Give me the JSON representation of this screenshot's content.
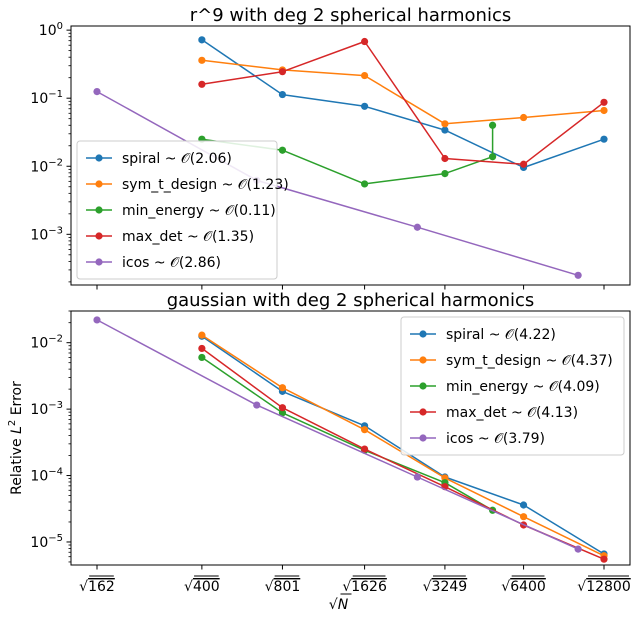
{
  "chart_data": [
    {
      "type": "line",
      "title": "r^9 with deg 2 spherical harmonics",
      "xlabel": "",
      "ylabel": "",
      "yscale": "log",
      "ylim": [
        0.00018,
        1.15
      ],
      "yticks": [
        {
          "value": 1,
          "base": "10",
          "exp": "0"
        },
        {
          "value": 0.1,
          "base": "10",
          "exp": "−1"
        },
        {
          "value": 0.01,
          "base": "10",
          "exp": "−2"
        },
        {
          "value": 0.001,
          "base": "10",
          "exp": "−3"
        }
      ],
      "grid": false,
      "legend_position": "lower-left",
      "series": [
        {
          "name": "spiral ~ 𝒪(2.06)",
          "color": "#1f77b4",
          "points": [
            [
              400,
              0.72
            ],
            [
              801,
              0.113
            ],
            [
              1626,
              0.076
            ],
            [
              3249,
              0.034
            ],
            [
              6400,
              0.0096
            ],
            [
              12800,
              0.025
            ]
          ]
        },
        {
          "name": "sym_t_design ~ 𝒪(1.23)",
          "color": "#ff7f0e",
          "points": [
            [
              400,
              0.36
            ],
            [
              801,
              0.26
            ],
            [
              1626,
              0.215
            ],
            [
              3249,
              0.042
            ],
            [
              6400,
              0.052
            ],
            [
              12800,
              0.066
            ]
          ]
        },
        {
          "name": "min_energy ~ 𝒪(0.11)",
          "color": "#2ca02c",
          "points": [
            [
              400,
              0.025
            ],
            [
              801,
              0.0172
            ],
            [
              1626,
              0.0055
            ],
            [
              3249,
              0.0078
            ],
            [
              4900,
              0.0138
            ],
            [
              4900,
              0.04
            ]
          ]
        },
        {
          "name": "max_det ~ 𝒪(1.35)",
          "color": "#d62728",
          "points": [
            [
              400,
              0.16
            ],
            [
              801,
              0.245
            ],
            [
              1626,
              0.68
            ],
            [
              3249,
              0.013
            ],
            [
              6400,
              0.0107
            ],
            [
              12800,
              0.087
            ]
          ]
        },
        {
          "name": "icos ~ 𝒪(2.86)",
          "color": "#9467bd",
          "points": [
            [
              162,
              0.125
            ],
            [
              642,
              0.0062
            ],
            [
              2562,
              0.00127
            ],
            [
              10242,
              0.00025
            ]
          ]
        }
      ]
    },
    {
      "type": "line",
      "title": "gaussian with deg 2 spherical harmonics",
      "xlabel": "√N",
      "ylabel": "Relative L² Error",
      "yscale": "log",
      "ylim": [
        4.5e-06,
        0.03
      ],
      "yticks": [
        {
          "value": 0.01,
          "base": "10",
          "exp": "−2"
        },
        {
          "value": 0.001,
          "base": "10",
          "exp": "−3"
        },
        {
          "value": 0.0001,
          "base": "10",
          "exp": "−4"
        },
        {
          "value": 1e-05,
          "base": "10",
          "exp": "−5"
        }
      ],
      "xticks": [
        {
          "value": 162,
          "label": "162"
        },
        {
          "value": 400,
          "label": "400"
        },
        {
          "value": 801,
          "label": "801"
        },
        {
          "value": 1626,
          "label": "1626"
        },
        {
          "value": 3249,
          "label": "3249"
        },
        {
          "value": 6400,
          "label": "6400"
        },
        {
          "value": 12800,
          "label": "12800"
        }
      ],
      "grid": false,
      "legend_position": "upper-right",
      "series": [
        {
          "name": "spiral ~ 𝒪(4.22)",
          "color": "#1f77b4",
          "points": [
            [
              400,
              0.0125
            ],
            [
              801,
              0.00185
            ],
            [
              1626,
              0.00056
            ],
            [
              3249,
              9.5e-05
            ],
            [
              6400,
              3.6e-05
            ],
            [
              12800,
              6.6e-06
            ]
          ]
        },
        {
          "name": "sym_t_design ~ 𝒪(4.37)",
          "color": "#ff7f0e",
          "points": [
            [
              400,
              0.013
            ],
            [
              801,
              0.0021
            ],
            [
              1626,
              0.00049
            ],
            [
              3249,
              9.2e-05
            ],
            [
              6400,
              2.4e-05
            ],
            [
              12800,
              6.2e-06
            ]
          ]
        },
        {
          "name": "min_energy ~ 𝒪(4.09)",
          "color": "#2ca02c",
          "points": [
            [
              400,
              0.006
            ],
            [
              801,
              0.00088
            ],
            [
              1626,
              0.00024
            ],
            [
              3249,
              7.8e-05
            ],
            [
              4900,
              3e-05
            ]
          ]
        },
        {
          "name": "max_det ~ 𝒪(4.13)",
          "color": "#d62728",
          "points": [
            [
              400,
              0.0082
            ],
            [
              801,
              0.00105
            ],
            [
              1626,
              0.00025
            ],
            [
              3249,
              6.8e-05
            ],
            [
              6400,
              1.8e-05
            ],
            [
              12800,
              5.5e-06
            ]
          ]
        },
        {
          "name": "icos ~ 𝒪(3.79)",
          "color": "#9467bd",
          "points": [
            [
              162,
              0.022
            ],
            [
              642,
              0.00115
            ],
            [
              2562,
              9.5e-05
            ],
            [
              10242,
              7.8e-06
            ]
          ]
        }
      ]
    }
  ]
}
